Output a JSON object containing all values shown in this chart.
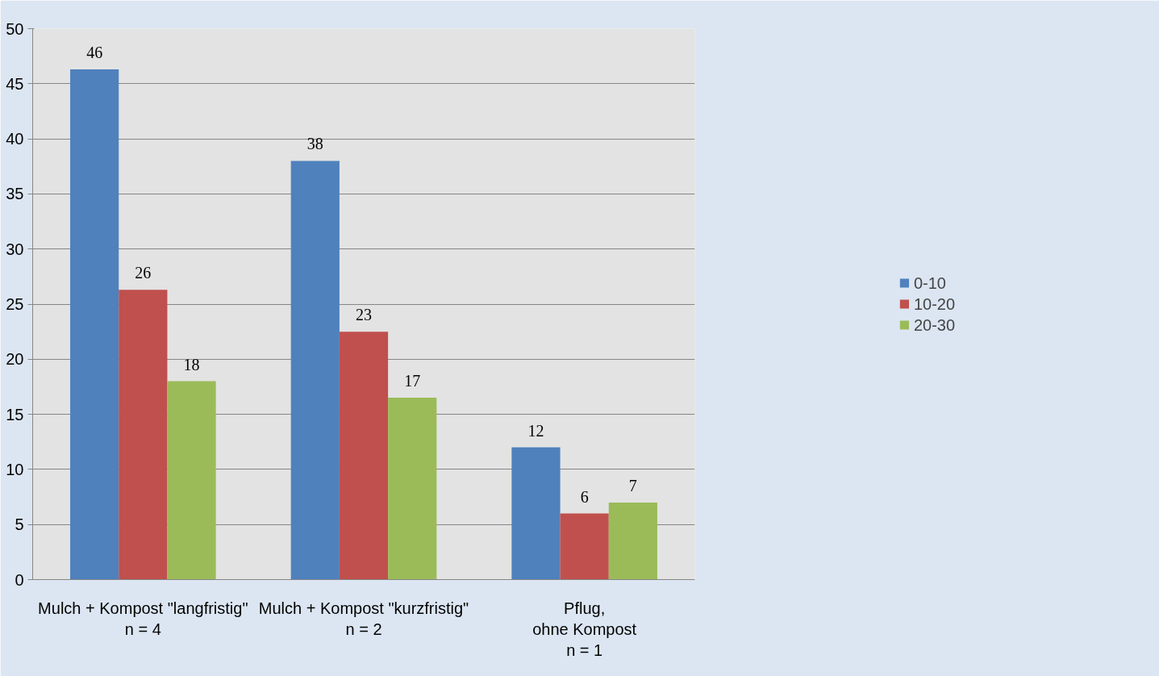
{
  "chart_data": {
    "type": "bar",
    "categories": [
      "Mulch + Kompost \"langfristig\"\nn = 4",
      "Mulch + Kompost \"kurzfristig\"\nn = 2",
      "Pflug,\nohne Kompost\nn = 1"
    ],
    "series": [
      {
        "name": "0-10",
        "color": "#4f81bd",
        "values": [
          46.3,
          38,
          12
        ],
        "value_labels": [
          "46",
          "38",
          "12"
        ]
      },
      {
        "name": "10-20",
        "color": "#c0504d",
        "values": [
          26.3,
          22.5,
          6
        ],
        "value_labels": [
          "26",
          "23",
          "6"
        ]
      },
      {
        "name": "20-30",
        "color": "#9bbb59",
        "values": [
          18,
          16.5,
          7
        ],
        "value_labels": [
          "18",
          "17",
          "7"
        ]
      }
    ],
    "ylim": [
      0,
      50
    ],
    "yticks": [
      0,
      5,
      10,
      15,
      20,
      25,
      30,
      35,
      40,
      45,
      50
    ],
    "grid": "y",
    "legend": "right"
  }
}
